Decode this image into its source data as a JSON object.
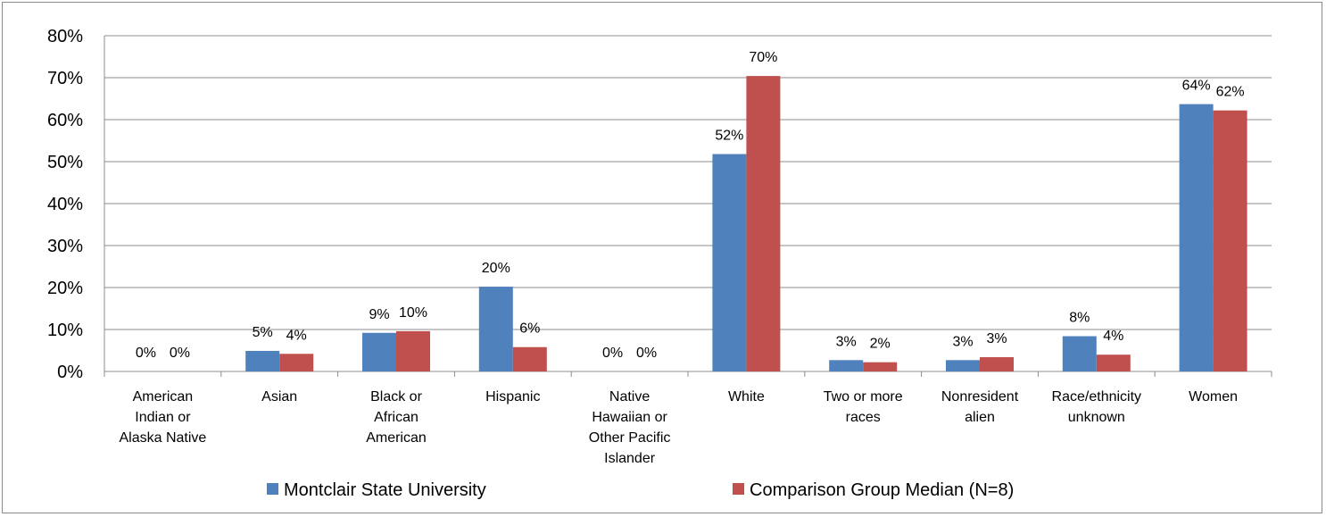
{
  "chart_data": {
    "type": "bar",
    "title": "",
    "xlabel": "",
    "ylabel": "",
    "ylim": [
      0,
      80
    ],
    "yticks": [
      "0%",
      "10%",
      "20%",
      "30%",
      "40%",
      "50%",
      "60%",
      "70%",
      "80%"
    ],
    "grid": true,
    "legend_position": "bottom",
    "categories": [
      [
        "American",
        "Indian or",
        "Alaska Native"
      ],
      [
        "Asian"
      ],
      [
        "Black or",
        "African",
        "American"
      ],
      [
        "Hispanic"
      ],
      [
        "Native",
        "Hawaiian or",
        "Other Pacific",
        "Islander"
      ],
      [
        "White"
      ],
      [
        "Two or more",
        "races"
      ],
      [
        "Nonresident",
        "alien"
      ],
      [
        "Race/ethnicity",
        "unknown"
      ],
      [
        "Women"
      ]
    ],
    "series": [
      {
        "name": "Montclair State University",
        "color": "#4f81bd",
        "values": [
          0,
          5,
          9,
          20,
          0,
          52,
          3,
          3,
          8,
          64
        ],
        "heights": [
          0,
          4.9,
          9.2,
          20.2,
          0,
          51.8,
          2.7,
          2.7,
          8.4,
          63.7
        ],
        "labels": [
          "0%",
          "5%",
          "9%",
          "20%",
          "0%",
          "52%",
          "3%",
          "3%",
          "8%",
          "64%"
        ]
      },
      {
        "name": "Comparison Group Median (N=8)",
        "color": "#c0504d",
        "values": [
          0,
          4,
          10,
          6,
          0,
          70,
          2,
          3,
          4,
          62
        ],
        "heights": [
          0,
          4.2,
          9.6,
          5.8,
          0,
          70.4,
          2.2,
          3.4,
          4.0,
          62.2
        ],
        "labels": [
          "0%",
          "4%",
          "10%",
          "6%",
          "0%",
          "70%",
          "2%",
          "3%",
          "4%",
          "62%"
        ]
      }
    ]
  }
}
